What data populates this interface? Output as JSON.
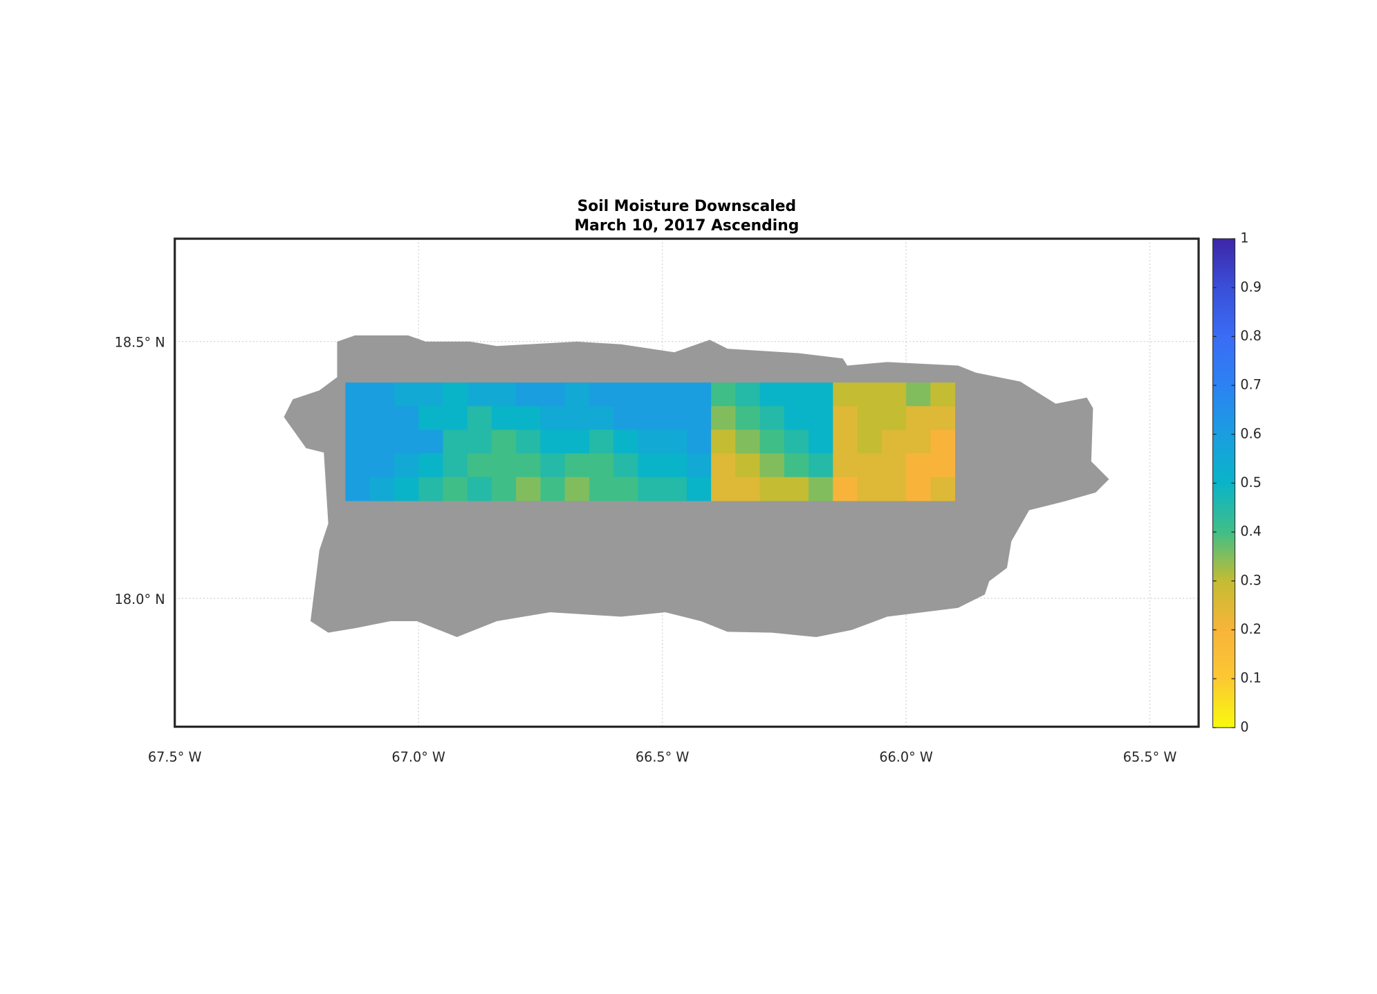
{
  "chart_data": {
    "type": "map",
    "title": [
      "Soil Moisture Downscaled",
      "March 10, 2017 Ascending"
    ],
    "xlim": [
      -67.5,
      -65.4
    ],
    "ylim": [
      17.75,
      18.7
    ],
    "xticks": [
      {
        "value": -67.5,
        "label": "67.5° W"
      },
      {
        "value": -67.0,
        "label": "67.0° W"
      },
      {
        "value": -66.5,
        "label": "66.5° W"
      },
      {
        "value": -66.0,
        "label": "66.0° W"
      },
      {
        "value": -65.5,
        "label": "65.5° W"
      }
    ],
    "yticks": [
      {
        "value": 18.0,
        "label": "18.0° N"
      },
      {
        "value": 18.5,
        "label": "18.5° N"
      }
    ],
    "grid": true,
    "clim": [
      0,
      1
    ],
    "cticks": [
      0,
      0.1,
      0.2,
      0.3,
      0.4,
      0.5,
      0.6,
      0.7,
      0.8,
      0.9,
      1
    ],
    "colormap": [
      "#f8fa0d",
      "#fcc832",
      "#f8b43a",
      "#c4bc33",
      "#40be87",
      "#0ab4c8",
      "#1a9ee0",
      "#2c82f2",
      "#3a6cf5",
      "#3a4fd8",
      "#3d26a8"
    ],
    "land_color": "#999999",
    "raster": {
      "lonlim": [
        -67.15,
        -65.9
      ],
      "latlim": [
        18.19,
        18.42
      ],
      "values": [
        [
          0.6,
          0.6,
          0.55,
          0.55,
          0.5,
          0.55,
          0.55,
          0.6,
          0.6,
          0.55,
          0.6,
          0.6,
          0.6,
          0.6,
          0.6,
          0.4,
          0.45,
          0.5,
          0.5,
          0.5,
          0.3,
          0.3,
          0.3,
          0.35,
          0.3
        ],
        [
          0.6,
          0.6,
          0.6,
          0.5,
          0.5,
          0.45,
          0.5,
          0.5,
          0.55,
          0.55,
          0.55,
          0.6,
          0.6,
          0.6,
          0.6,
          0.35,
          0.4,
          0.45,
          0.5,
          0.5,
          0.25,
          0.3,
          0.3,
          0.25,
          0.25
        ],
        [
          0.6,
          0.6,
          0.6,
          0.6,
          0.45,
          0.45,
          0.4,
          0.45,
          0.5,
          0.5,
          0.45,
          0.5,
          0.55,
          0.55,
          0.6,
          0.3,
          0.35,
          0.4,
          0.45,
          0.5,
          0.25,
          0.3,
          0.25,
          0.25,
          0.2
        ],
        [
          0.6,
          0.6,
          0.55,
          0.5,
          0.45,
          0.4,
          0.4,
          0.4,
          0.45,
          0.4,
          0.4,
          0.45,
          0.5,
          0.5,
          0.55,
          0.25,
          0.3,
          0.35,
          0.4,
          0.45,
          0.25,
          0.25,
          0.25,
          0.2,
          0.2
        ],
        [
          0.6,
          0.55,
          0.5,
          0.45,
          0.4,
          0.45,
          0.4,
          0.35,
          0.4,
          0.35,
          0.4,
          0.4,
          0.45,
          0.45,
          0.5,
          0.25,
          0.25,
          0.3,
          0.3,
          0.35,
          0.2,
          0.25,
          0.25,
          0.2,
          0.25
        ]
      ]
    }
  }
}
